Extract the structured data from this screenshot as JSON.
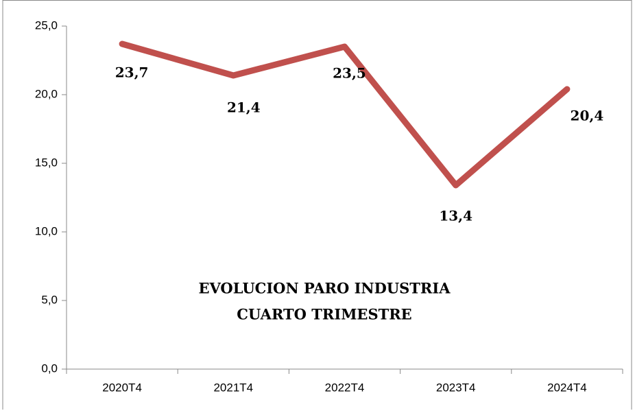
{
  "chart_data": {
    "type": "line",
    "title": [
      "EVOLUCION PARO INDUSTRIA",
      "CUARTO TRIMESTRE"
    ],
    "categories": [
      "2020T4",
      "2021T4",
      "2022T4",
      "2023T4",
      "2024T4"
    ],
    "series": [
      {
        "name": null,
        "color": "#c0504d",
        "values": [
          23.7,
          21.4,
          23.5,
          13.4,
          20.4
        ],
        "value_labels": [
          "23,7",
          "21,4",
          "23,5",
          "13,4",
          "20,4"
        ]
      }
    ],
    "ylim": [
      0,
      25
    ],
    "yticks": [
      {
        "value": 0,
        "label": "0,0"
      },
      {
        "value": 5,
        "label": "5,0"
      },
      {
        "value": 10,
        "label": "10,0"
      },
      {
        "value": 15,
        "label": "15,0"
      },
      {
        "value": 20,
        "label": "20,0"
      },
      {
        "value": 25,
        "label": "25,0"
      }
    ],
    "grid": false
  }
}
